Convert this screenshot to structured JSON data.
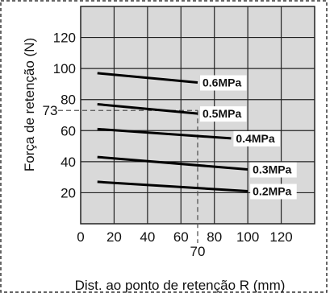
{
  "chart_data": {
    "type": "line",
    "xlabel": "Dist. ao ponto de retenção R (mm)",
    "ylabel": "Força de retenção (N)",
    "xlim": [
      0,
      140
    ],
    "ylim": [
      0,
      140
    ],
    "xticks": [
      "0",
      "20",
      "40",
      "60",
      "80",
      "100",
      "120"
    ],
    "yticks": [
      "20",
      "40",
      "60",
      "80",
      "100",
      "120"
    ],
    "grid": true,
    "series": [
      {
        "name": "0.6MPa",
        "x": [
          10,
          70
        ],
        "y": [
          97,
          91
        ]
      },
      {
        "name": "0.5MPa",
        "x": [
          10,
          70
        ],
        "y": [
          77,
          71
        ]
      },
      {
        "name": "0.4MPa",
        "x": [
          10,
          90
        ],
        "y": [
          61,
          55
        ]
      },
      {
        "name": "0.3MPa",
        "x": [
          10,
          100
        ],
        "y": [
          43,
          35
        ]
      },
      {
        "name": "0.2MPa",
        "x": [
          10,
          100
        ],
        "y": [
          27,
          21
        ]
      }
    ],
    "reference": {
      "x": 70,
      "y": 73,
      "x_label": "70",
      "y_label": "73"
    }
  }
}
